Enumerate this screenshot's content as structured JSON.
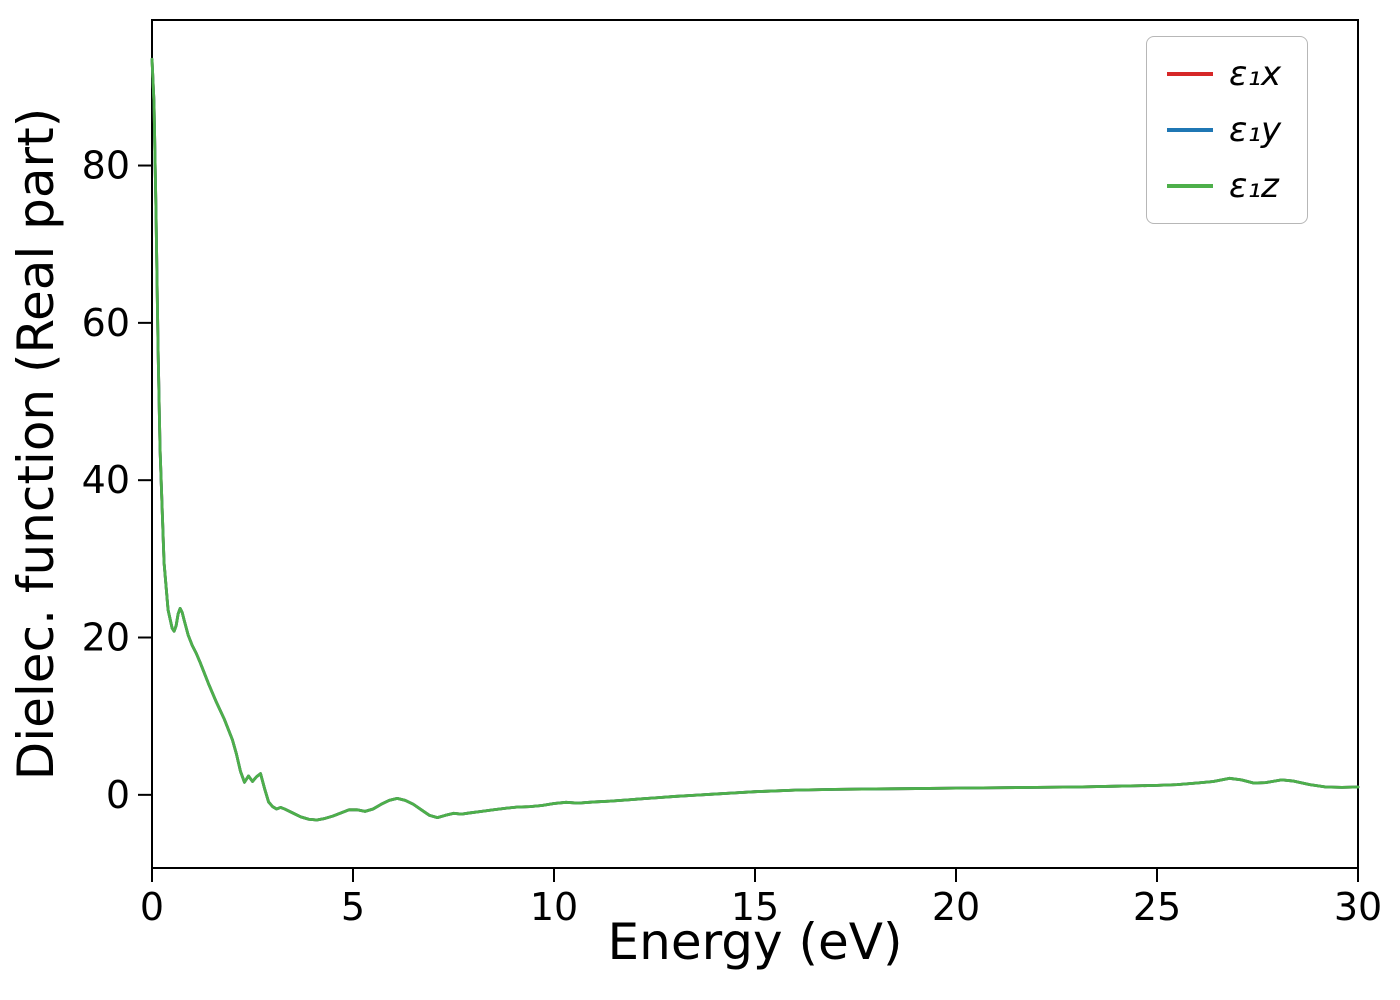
{
  "chart_data": {
    "type": "line",
    "title": "",
    "xlabel": "Energy (eV)",
    "ylabel": "Dielec. function (Real part)",
    "xlim": [
      0,
      30
    ],
    "ylim": [
      -9.3,
      98.5
    ],
    "xticks": [
      0,
      5,
      10,
      15,
      20,
      25,
      30
    ],
    "yticks": [
      0,
      20,
      40,
      60,
      80
    ],
    "grid": false,
    "legend_position": "upper right",
    "note": "All three series overlap exactly; only the last-drawn green curve is visible.",
    "x": [
      0,
      0.05,
      0.1,
      0.15,
      0.2,
      0.3,
      0.4,
      0.5,
      0.55,
      0.6,
      0.65,
      0.7,
      0.75,
      0.8,
      0.9,
      1.0,
      1.1,
      1.2,
      1.4,
      1.6,
      1.8,
      2.0,
      2.1,
      2.2,
      2.3,
      2.4,
      2.5,
      2.6,
      2.7,
      2.8,
      2.9,
      3.0,
      3.1,
      3.2,
      3.3,
      3.5,
      3.7,
      3.9,
      4.1,
      4.3,
      4.5,
      4.7,
      4.9,
      5.1,
      5.3,
      5.5,
      5.7,
      5.9,
      6.1,
      6.3,
      6.5,
      6.7,
      6.9,
      7.1,
      7.3,
      7.5,
      7.7,
      7.9,
      8.2,
      8.5,
      8.8,
      9.1,
      9.4,
      9.7,
      10.0,
      10.3,
      10.6,
      11.0,
      11.4,
      11.8,
      12.2,
      12.6,
      13.0,
      13.5,
      14.0,
      14.5,
      15.0,
      16.0,
      17.0,
      18.0,
      19.0,
      20.0,
      21.0,
      22.0,
      23.0,
      24.0,
      25.0,
      25.5,
      26.0,
      26.4,
      26.8,
      27.1,
      27.4,
      27.7,
      28.1,
      28.4,
      28.8,
      29.2,
      29.6,
      30.0
    ],
    "y_shared": [
      93.5,
      88,
      74,
      57,
      44,
      29.5,
      23.5,
      21.2,
      20.8,
      21.5,
      23.0,
      23.7,
      23.2,
      22.2,
      20.3,
      19.0,
      18.0,
      16.8,
      14.2,
      11.8,
      9.6,
      7.0,
      5.2,
      3.0,
      1.6,
      2.4,
      1.7,
      2.3,
      2.7,
      0.8,
      -0.9,
      -1.5,
      -1.8,
      -1.6,
      -1.8,
      -2.3,
      -2.8,
      -3.1,
      -3.2,
      -3.0,
      -2.7,
      -2.3,
      -1.9,
      -1.9,
      -2.1,
      -1.8,
      -1.2,
      -0.7,
      -0.45,
      -0.7,
      -1.2,
      -1.9,
      -2.6,
      -2.9,
      -2.6,
      -2.35,
      -2.45,
      -2.3,
      -2.1,
      -1.9,
      -1.7,
      -1.55,
      -1.5,
      -1.35,
      -1.1,
      -0.95,
      -1.05,
      -0.9,
      -0.8,
      -0.65,
      -0.5,
      -0.35,
      -0.2,
      -0.05,
      0.1,
      0.25,
      0.4,
      0.6,
      0.7,
      0.75,
      0.8,
      0.85,
      0.9,
      0.95,
      1.0,
      1.1,
      1.2,
      1.3,
      1.5,
      1.7,
      2.1,
      1.9,
      1.5,
      1.55,
      1.9,
      1.75,
      1.3,
      1.0,
      0.95,
      1.0
    ],
    "series": [
      {
        "id": "eps1x",
        "label": "ε₁x",
        "color": "#d62728"
      },
      {
        "id": "eps1y",
        "label": "ε₁y",
        "color": "#1f77b4"
      },
      {
        "id": "eps1z",
        "label": "ε₁z",
        "color": "#4daf4a"
      }
    ]
  }
}
